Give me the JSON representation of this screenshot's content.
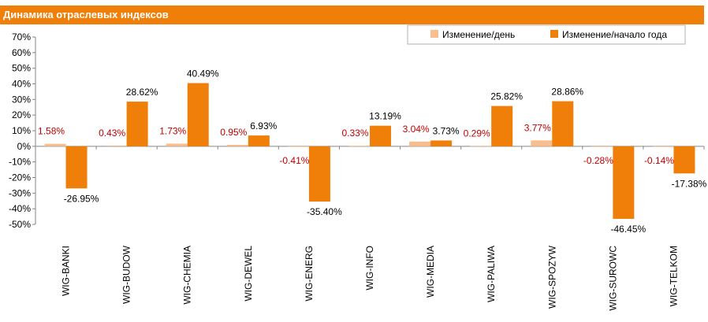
{
  "title": "Динамика отраслевых индексов",
  "colors": {
    "header": "#f07f09",
    "daily": "#f9be8e",
    "ytd": "#f07f09",
    "daily_label": "#c00000",
    "ytd_label": "#000000"
  },
  "chart_data": {
    "type": "bar",
    "categories": [
      "WIG-BANKI",
      "WIG-BUDOW",
      "WIG-CHEMIA",
      "WIG-DEWEL",
      "WIG-ENERG",
      "WIG-INFO",
      "WIG-MEDIA",
      "WIG-PALIWA",
      "WIG-SPOZYW",
      "WIG-SUROWC",
      "WIG-TELKOM"
    ],
    "series": [
      {
        "name": "Изменение/день",
        "values": [
          1.58,
          0.43,
          1.73,
          0.95,
          -0.41,
          0.33,
          3.04,
          0.29,
          3.77,
          -0.28,
          -0.14
        ],
        "labels": [
          "1.58%",
          "0.43%",
          "1.73%",
          "0.95%",
          "-0.41%",
          "0.33%",
          "3.04%",
          "0.29%",
          "3.77%",
          "-0.28%",
          "-0.14%"
        ]
      },
      {
        "name": "Изменение/начало года",
        "values": [
          -26.95,
          28.62,
          40.49,
          6.93,
          -35.4,
          13.19,
          3.73,
          25.82,
          28.86,
          -46.45,
          -17.38
        ],
        "labels": [
          "-26.95%",
          "28.62%",
          "40.49%",
          "6.93%",
          "-35.40%",
          "13.19%",
          "3.73%",
          "25.82%",
          "28.86%",
          "-46.45%",
          "-17.38%"
        ]
      }
    ],
    "ylim": [
      -50,
      70
    ],
    "y_ticks": [
      "70%",
      "60%",
      "50%",
      "40%",
      "30%",
      "20%",
      "10%",
      "0%",
      "-10%",
      "-20%",
      "-30%",
      "-40%",
      "-50%"
    ],
    "grid": false,
    "legend_position": "top-right"
  }
}
